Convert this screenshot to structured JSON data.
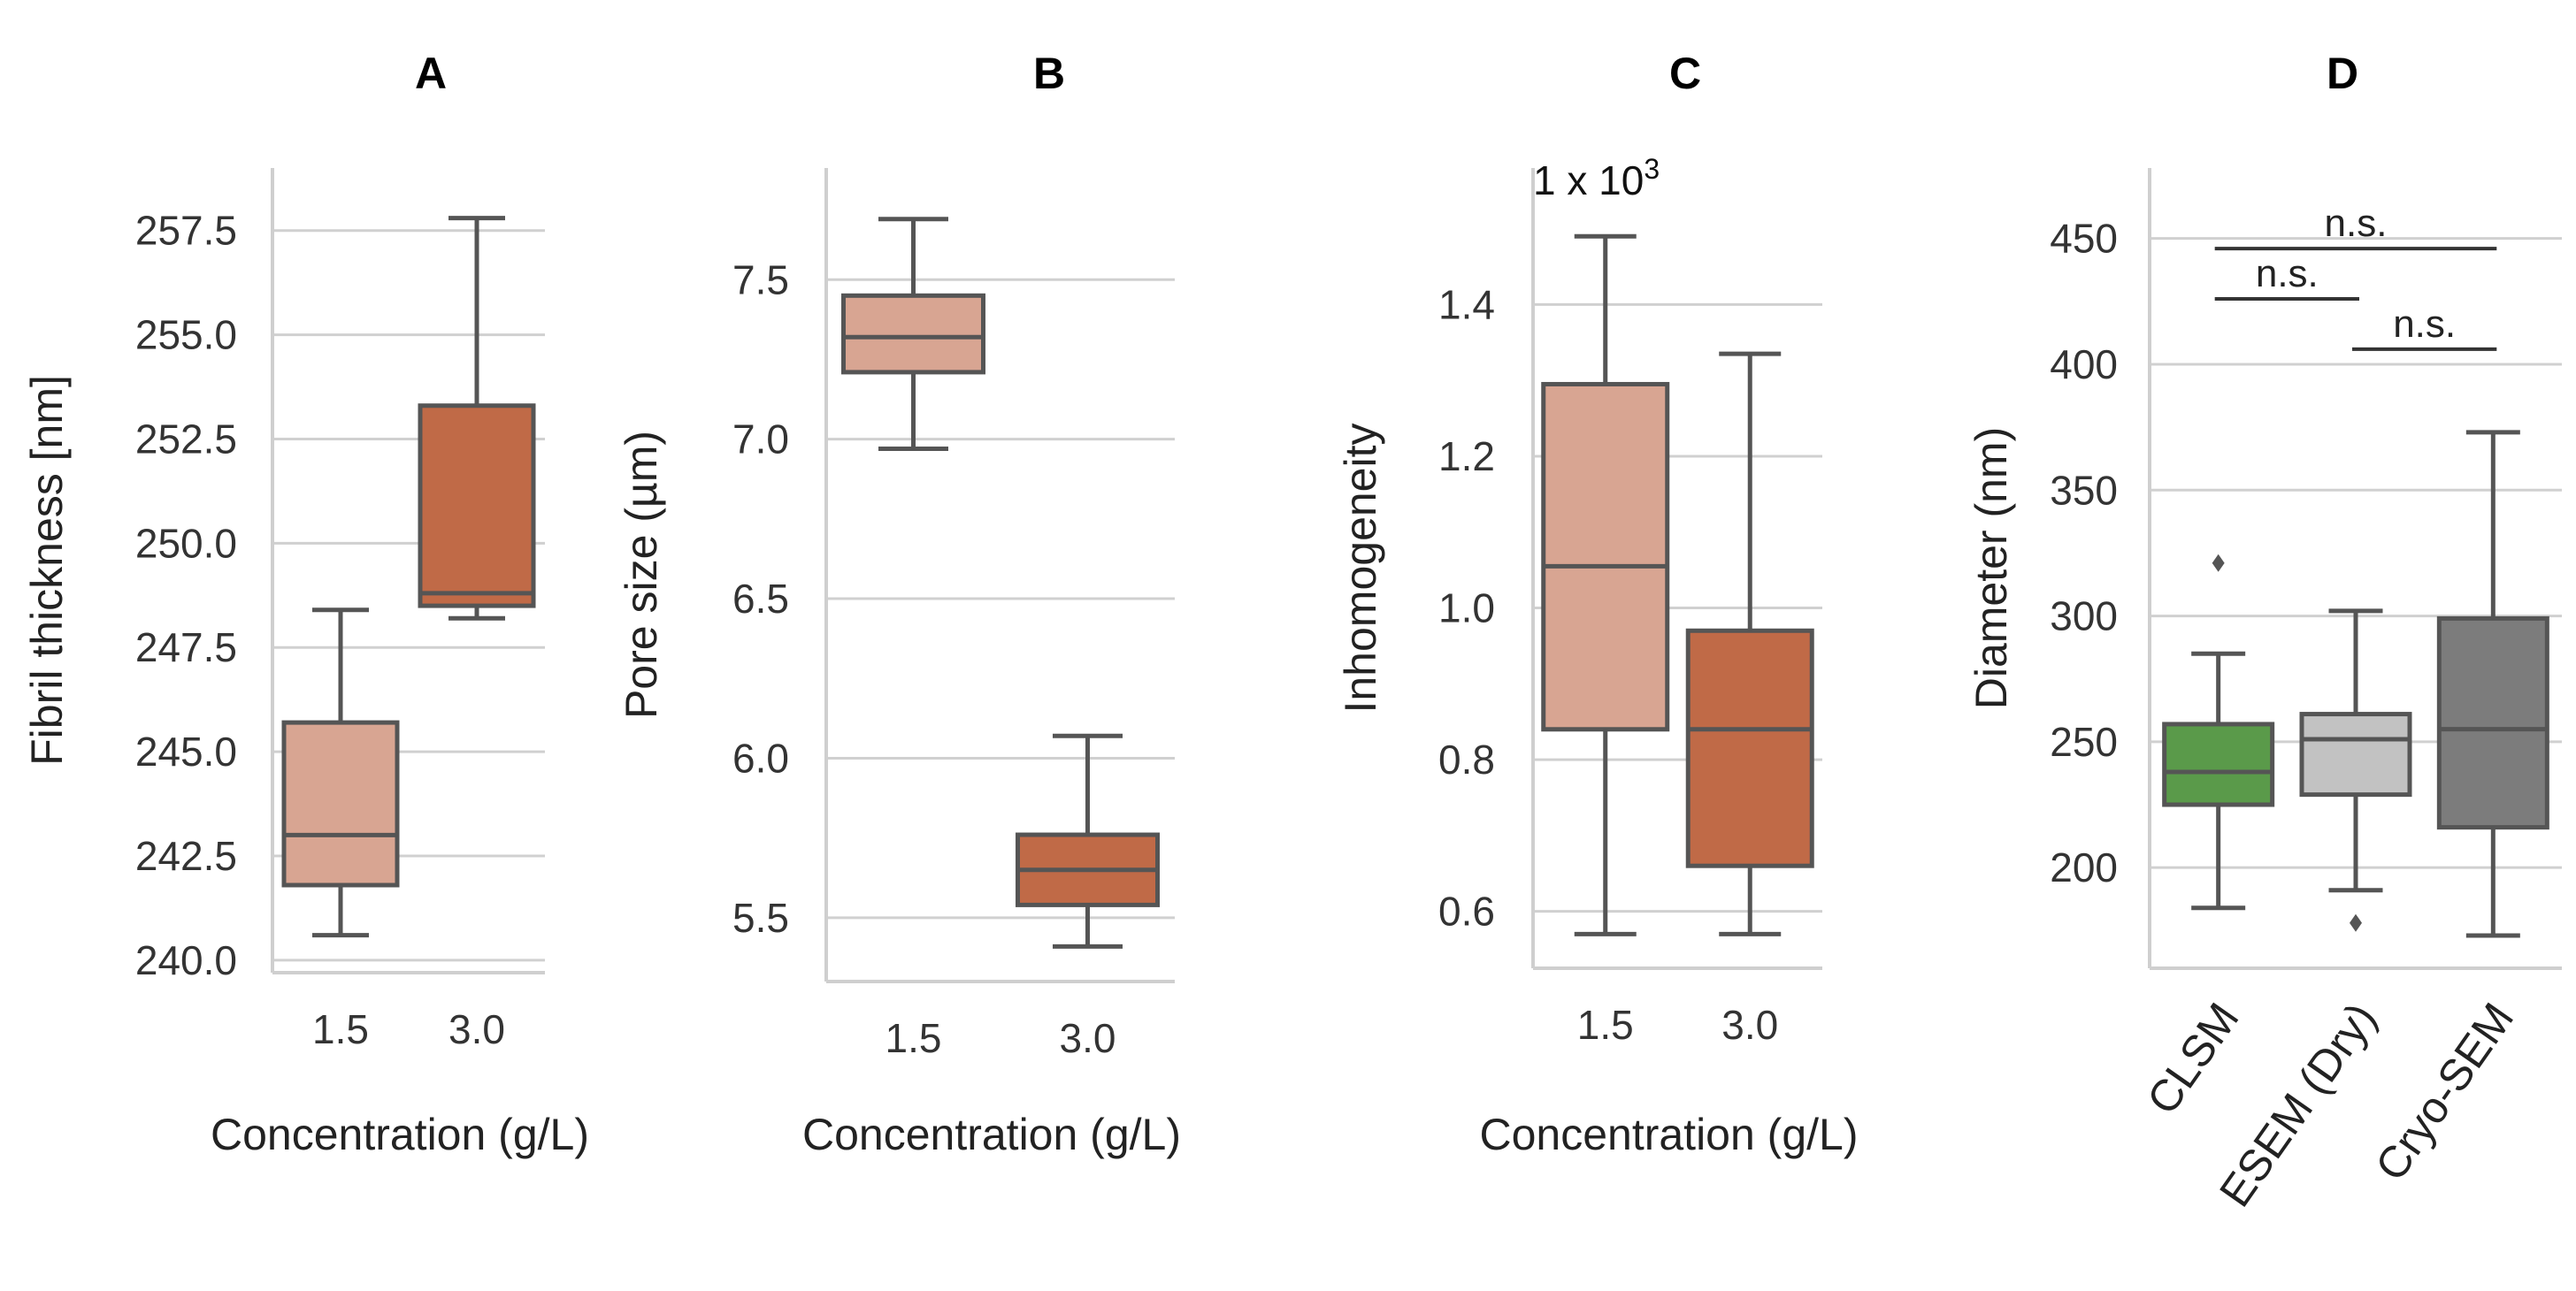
{
  "chart_data": [
    {
      "type": "box",
      "panel": "A",
      "title": "A",
      "xlabel": "Concentration (g/L)",
      "ylabel": "Fibril thickness [nm]",
      "ylim": [
        239.7,
        259.0
      ],
      "yticks": [
        "240.0",
        "242.5",
        "245.0",
        "247.5",
        "250.0",
        "252.5",
        "255.0",
        "257.5"
      ],
      "categories": [
        "1.5",
        "3.0"
      ],
      "colors": [
        "#d8a592",
        "#c06a47"
      ],
      "boxes": [
        {
          "whislo": 240.6,
          "q1": 241.8,
          "med": 243.0,
          "q3": 245.7,
          "whishi": 248.4,
          "fliers": []
        },
        {
          "whislo": 248.2,
          "q1": 248.5,
          "med": 248.8,
          "q3": 253.3,
          "whishi": 257.8,
          "fliers": []
        }
      ]
    },
    {
      "type": "box",
      "panel": "B",
      "title": "B",
      "xlabel": "Concentration (g/L)",
      "ylabel": "Pore size (µm)",
      "ylim": [
        5.3,
        7.85
      ],
      "yticks": [
        "5.5",
        "6.0",
        "6.5",
        "7.0",
        "7.5"
      ],
      "categories": [
        "1.5",
        "3.0"
      ],
      "colors": [
        "#d8a592",
        "#c06a47"
      ],
      "boxes": [
        {
          "whislo": 6.97,
          "q1": 7.21,
          "med": 7.32,
          "q3": 7.45,
          "whishi": 7.69,
          "fliers": []
        },
        {
          "whislo": 5.41,
          "q1": 5.54,
          "med": 5.65,
          "q3": 5.76,
          "whishi": 6.07,
          "fliers": []
        }
      ]
    },
    {
      "type": "box",
      "panel": "C",
      "title": "C",
      "xlabel": "Concentration (g/L)",
      "ylabel": "Inhomogeneity",
      "scale_note": "1 x 10",
      "scale_exp": "3",
      "ylim": [
        0.525,
        1.58
      ],
      "yticks": [
        "0.6",
        "0.8",
        "1.0",
        "1.2",
        "1.4"
      ],
      "categories": [
        "1.5",
        "3.0"
      ],
      "colors": [
        "#d8a592",
        "#c06a47"
      ],
      "boxes": [
        {
          "whislo": 0.57,
          "q1": 0.84,
          "med": 1.055,
          "q3": 1.295,
          "whishi": 1.49,
          "fliers": []
        },
        {
          "whislo": 0.57,
          "q1": 0.66,
          "med": 0.84,
          "q3": 0.97,
          "whishi": 1.335,
          "fliers": []
        }
      ]
    },
    {
      "type": "box",
      "panel": "D",
      "title": "D",
      "xlabel": "",
      "ylabel": "Diameter (nm)",
      "ylim": [
        160,
        478
      ],
      "yticks": [
        "200",
        "250",
        "300",
        "350",
        "400",
        "450"
      ],
      "categories": [
        "CLSM",
        "ESEM (Dry)",
        "Cryo-SEM"
      ],
      "colors": [
        "#5a9a4a",
        "#c2c2c2",
        "#7c7c7c"
      ],
      "boxes": [
        {
          "whislo": 184,
          "q1": 225,
          "med": 238,
          "q3": 257,
          "whishi": 285,
          "fliers": [
            321
          ]
        },
        {
          "whislo": 191,
          "q1": 229,
          "med": 251,
          "q3": 261,
          "whishi": 302,
          "fliers": [
            178
          ]
        },
        {
          "whislo": 173,
          "q1": 216,
          "med": 255,
          "q3": 299,
          "whishi": 373,
          "fliers": []
        }
      ],
      "significance": [
        {
          "pair": [
            0,
            2
          ],
          "label": "n.s.",
          "y": 446
        },
        {
          "pair": [
            0,
            1
          ],
          "label": "n.s.",
          "y": 426
        },
        {
          "pair": [
            1,
            2
          ],
          "label": "n.s.",
          "y": 406
        }
      ]
    }
  ]
}
